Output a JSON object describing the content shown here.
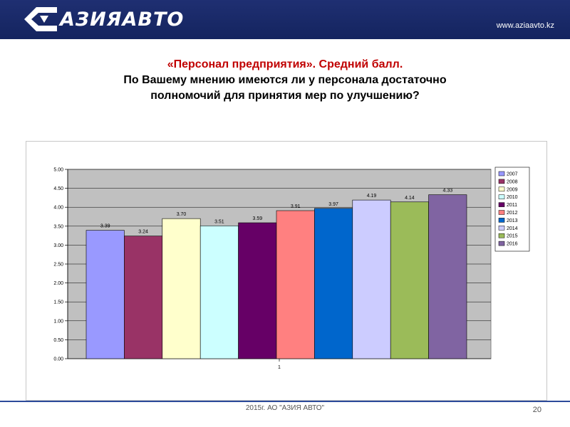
{
  "header": {
    "brand": "АЗИЯАВТО",
    "url": "www.aziaavto.kz"
  },
  "title": {
    "line1": "«Персонал предприятия». Средний балл.",
    "line2": "По Вашему мнению имеются ли у персонала достаточно",
    "line3": "полномочий для принятия мер по улучшению?"
  },
  "footer": {
    "text": "2015г. АО \"АЗИЯ АВТО\"",
    "page": "20"
  },
  "chart_data": {
    "type": "bar",
    "categories": [
      "1"
    ],
    "ylim": [
      0,
      5
    ],
    "yticks": [
      "0.00",
      "0.50",
      "1.00",
      "1.50",
      "2.00",
      "2.50",
      "3.00",
      "3.50",
      "4.00",
      "4.50",
      "5.00"
    ],
    "grid": true,
    "legend": "right",
    "series": [
      {
        "name": "2007",
        "value": 3.39,
        "label": "3.39",
        "color": "#9999ff"
      },
      {
        "name": "2008",
        "value": 3.24,
        "label": "3.24",
        "color": "#993366"
      },
      {
        "name": "2009",
        "value": 3.7,
        "label": "3.70",
        "color": "#ffffcc"
      },
      {
        "name": "2010",
        "value": 3.51,
        "label": "3.51",
        "color": "#ccffff"
      },
      {
        "name": "2011",
        "value": 3.59,
        "label": "3.59",
        "color": "#660066"
      },
      {
        "name": "2012",
        "value": 3.91,
        "label": "3.91",
        "color": "#ff8080"
      },
      {
        "name": "2013",
        "value": 3.97,
        "label": "3.97",
        "color": "#0066cc"
      },
      {
        "name": "2014",
        "value": 4.19,
        "label": "4.19",
        "color": "#ccccff"
      },
      {
        "name": "2015",
        "value": 4.14,
        "label": "4.14",
        "color": "#9bbb59"
      },
      {
        "name": "2016",
        "value": 4.33,
        "label": "4.33",
        "color": "#8064a2"
      }
    ]
  }
}
